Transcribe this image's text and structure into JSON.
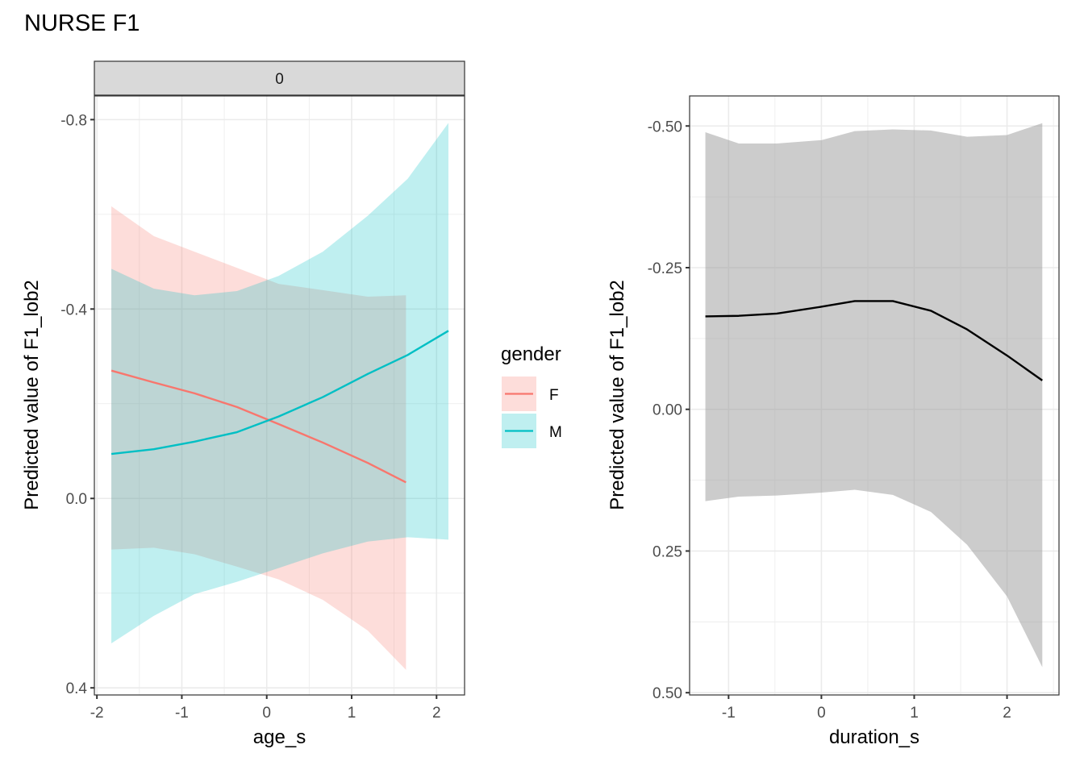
{
  "figure": {
    "title": "NURSE F1"
  },
  "colors": {
    "F": "#F8766D",
    "M": "#00BFC4",
    "F_ribbon": "#F8766D",
    "M_ribbon": "#00BFC4",
    "overall_line": "#000000",
    "overall_ribbon": "#999999",
    "strip_bg": "#d9d9d9"
  },
  "chart_data": [
    {
      "type": "line",
      "panel": "left",
      "strip_label": "0",
      "xlabel": "age_s",
      "ylabel": "Predicted value of F1_lob2",
      "y_reversed": true,
      "xlim": [
        -2.03,
        2.33
      ],
      "ylim": [
        -0.85,
        0.415
      ],
      "x_ticks": [
        -2,
        -1,
        0,
        1,
        2
      ],
      "x_tick_labels": [
        "-2",
        "-1",
        "0",
        "1",
        "2"
      ],
      "y_ticks": [
        -0.8,
        -0.4,
        0.0,
        0.4
      ],
      "y_tick_labels": [
        "-0.8",
        "-0.4",
        "0.0",
        "0.4"
      ],
      "grid": true,
      "legend": {
        "title": "gender",
        "placement": "right",
        "entries": [
          "F",
          "M"
        ]
      },
      "series": [
        {
          "name": "F",
          "x": [
            -1.83,
            -1.33,
            -0.85,
            -0.35,
            0.14,
            0.66,
            1.19,
            1.64
          ],
          "y": [
            -0.27,
            -0.245,
            -0.222,
            -0.193,
            -0.157,
            -0.118,
            -0.075,
            -0.034
          ],
          "lower": [
            -0.617,
            -0.554,
            -0.521,
            -0.487,
            -0.453,
            -0.44,
            -0.426,
            -0.429
          ],
          "upper": [
            0.108,
            0.104,
            0.118,
            0.144,
            0.171,
            0.214,
            0.279,
            0.362
          ]
        },
        {
          "name": "M",
          "x": [
            -1.83,
            -1.33,
            -0.85,
            -0.35,
            0.14,
            0.66,
            1.19,
            1.66,
            2.14
          ],
          "y": [
            -0.094,
            -0.104,
            -0.12,
            -0.14,
            -0.173,
            -0.214,
            -0.263,
            -0.303,
            -0.354
          ],
          "lower": [
            -0.485,
            -0.443,
            -0.429,
            -0.438,
            -0.47,
            -0.521,
            -0.597,
            -0.675,
            -0.793
          ],
          "upper": [
            0.306,
            0.248,
            0.202,
            0.176,
            0.147,
            0.116,
            0.091,
            0.082,
            0.087
          ]
        }
      ]
    },
    {
      "type": "line",
      "panel": "right",
      "xlabel": "duration_s",
      "ylabel": "Predicted value of F1_lob2",
      "y_reversed": true,
      "xlim": [
        -1.42,
        2.56
      ],
      "ylim": [
        -0.553,
        0.504
      ],
      "x_ticks": [
        -1,
        0,
        1,
        2
      ],
      "x_tick_labels": [
        "-1",
        "0",
        "1",
        "2"
      ],
      "y_ticks": [
        -0.5,
        -0.25,
        0.0,
        0.25,
        0.5
      ],
      "y_tick_labels": [
        "-0.50",
        "-0.25",
        "0.00",
        "0.25",
        "0.50"
      ],
      "grid": true,
      "series": [
        {
          "name": "predicted",
          "x": [
            -1.25,
            -0.89,
            -0.48,
            0.0,
            0.36,
            0.77,
            1.18,
            1.57,
            2.0,
            2.38
          ],
          "y": [
            -0.164,
            -0.165,
            -0.169,
            -0.181,
            -0.191,
            -0.191,
            -0.174,
            -0.141,
            -0.095,
            -0.051
          ],
          "lower": [
            -0.489,
            -0.469,
            -0.469,
            -0.475,
            -0.491,
            -0.494,
            -0.492,
            -0.481,
            -0.484,
            -0.505
          ],
          "upper": [
            0.162,
            0.154,
            0.152,
            0.147,
            0.142,
            0.151,
            0.181,
            0.239,
            0.33,
            0.455
          ]
        }
      ]
    }
  ]
}
